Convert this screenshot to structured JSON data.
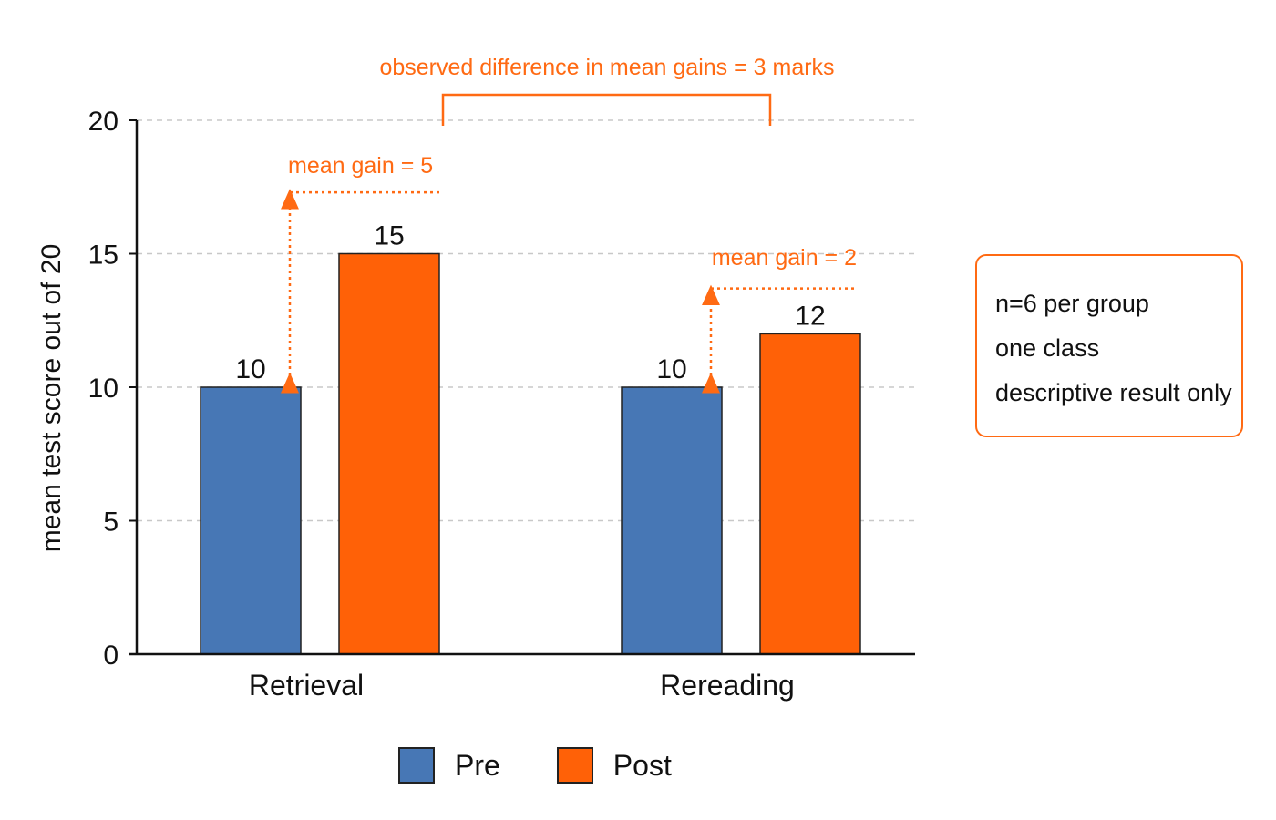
{
  "chart_data": {
    "type": "bar",
    "categories": [
      "Retrieval",
      "Rereading"
    ],
    "series": [
      {
        "name": "Pre",
        "values": [
          10,
          10
        ],
        "color": "#4777b5"
      },
      {
        "name": "Post",
        "values": [
          15,
          12
        ],
        "color": "#ff6107"
      }
    ],
    "data_labels": [
      [
        "10",
        "10"
      ],
      [
        "15",
        "12"
      ]
    ],
    "ylabel": "mean test score out of 20",
    "ylim": [
      0,
      20
    ],
    "yticks": [
      0,
      5,
      10,
      15,
      20
    ],
    "grid": true,
    "legend_position": "bottom-center",
    "annotations": {
      "gain_labels": [
        "mean gain = 5",
        "mean gain = 2"
      ],
      "gain_markers": [
        17.3,
        13.7
      ],
      "difference_label": "observed difference in mean gains = 3 marks"
    },
    "accent_color": "#ff6a13"
  },
  "note": {
    "lines": [
      "n=6 per group",
      "one class",
      "descriptive result only"
    ]
  }
}
